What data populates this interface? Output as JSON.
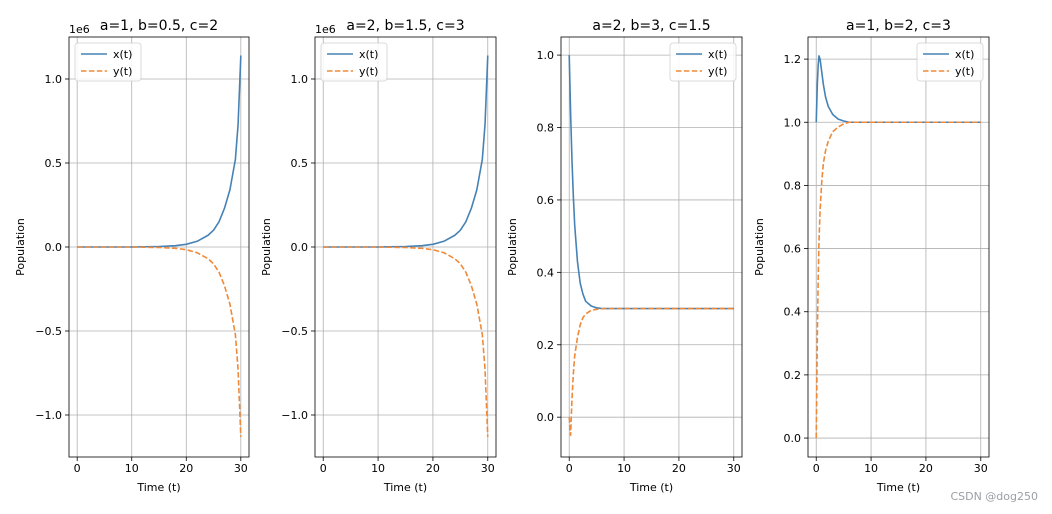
{
  "watermark": "CSDN @dog250",
  "colors": {
    "x_series": "#4682b4",
    "y_series": "#ee8a3a",
    "grid": "#b0b0b0",
    "axis": "#000000"
  },
  "chart_data": [
    {
      "type": "line",
      "title": "a=1, b=0.5, c=2",
      "xlabel": "Time (t)",
      "ylabel": "Population",
      "offset_text": "1e6",
      "xlim": [
        -1.5,
        31.5
      ],
      "ylim": [
        -1.25,
        1.25
      ],
      "xticks": [
        0,
        10,
        20,
        30
      ],
      "xtick_labels": [
        "0",
        "10",
        "20",
        "30"
      ],
      "yticks": [
        -1.0,
        -0.5,
        0.0,
        0.5,
        1.0
      ],
      "ytick_labels": [
        "−1.0",
        "−0.5",
        "0.0",
        "0.5",
        "1.0"
      ],
      "grid": true,
      "legend": "upper left",
      "series": [
        {
          "name": "x(t)",
          "style": "solid",
          "x": [
            0,
            5,
            10,
            15,
            18,
            20,
            22,
            24,
            25,
            26,
            27,
            28,
            29,
            29.5,
            30
          ],
          "y": [
            0.0,
            0.0,
            0.0,
            0.003,
            0.008,
            0.016,
            0.034,
            0.07,
            0.1,
            0.15,
            0.23,
            0.34,
            0.52,
            0.73,
            1.14
          ]
        },
        {
          "name": "y(t)",
          "style": "dashed",
          "x": [
            0,
            5,
            10,
            15,
            18,
            20,
            22,
            24,
            25,
            26,
            27,
            28,
            29,
            29.5,
            30
          ],
          "y": [
            0.0,
            0.0,
            0.0,
            -0.003,
            -0.008,
            -0.016,
            -0.034,
            -0.07,
            -0.1,
            -0.15,
            -0.23,
            -0.34,
            -0.52,
            -0.73,
            -1.13
          ]
        }
      ]
    },
    {
      "type": "line",
      "title": "a=2, b=1.5, c=3",
      "xlabel": "Time (t)",
      "ylabel": "Population",
      "offset_text": "1e6",
      "xlim": [
        -1.5,
        31.5
      ],
      "ylim": [
        -1.25,
        1.25
      ],
      "xticks": [
        0,
        10,
        20,
        30
      ],
      "xtick_labels": [
        "0",
        "10",
        "20",
        "30"
      ],
      "yticks": [
        -1.0,
        -0.5,
        0.0,
        0.5,
        1.0
      ],
      "ytick_labels": [
        "−1.0",
        "−0.5",
        "0.0",
        "0.5",
        "1.0"
      ],
      "grid": true,
      "legend": "upper left",
      "series": [
        {
          "name": "x(t)",
          "style": "solid",
          "x": [
            0,
            5,
            10,
            15,
            18,
            20,
            22,
            24,
            25,
            26,
            27,
            28,
            29,
            29.5,
            30
          ],
          "y": [
            0.0,
            0.0,
            0.0,
            0.003,
            0.008,
            0.016,
            0.034,
            0.07,
            0.1,
            0.15,
            0.23,
            0.34,
            0.52,
            0.73,
            1.14
          ]
        },
        {
          "name": "y(t)",
          "style": "dashed",
          "x": [
            0,
            5,
            10,
            15,
            18,
            20,
            22,
            24,
            25,
            26,
            27,
            28,
            29,
            29.5,
            30
          ],
          "y": [
            0.0,
            0.0,
            0.0,
            -0.003,
            -0.008,
            -0.016,
            -0.034,
            -0.07,
            -0.1,
            -0.15,
            -0.23,
            -0.34,
            -0.52,
            -0.73,
            -1.13
          ]
        }
      ]
    },
    {
      "type": "line",
      "title": "a=2, b=3, c=1.5",
      "xlabel": "Time (t)",
      "ylabel": "Population",
      "offset_text": "",
      "xlim": [
        -1.5,
        31.5
      ],
      "ylim": [
        -0.11,
        1.05
      ],
      "xticks": [
        0,
        10,
        20,
        30
      ],
      "xtick_labels": [
        "0",
        "10",
        "20",
        "30"
      ],
      "yticks": [
        0.0,
        0.2,
        0.4,
        0.6,
        0.8,
        1.0
      ],
      "ytick_labels": [
        "0.0",
        "0.2",
        "0.4",
        "0.6",
        "0.8",
        "1.0"
      ],
      "grid": true,
      "legend": "upper right",
      "series": [
        {
          "name": "x(t)",
          "style": "solid",
          "x": [
            0,
            0.25,
            0.5,
            0.75,
            1,
            1.5,
            2,
            2.5,
            3,
            4,
            5,
            6,
            8,
            10,
            15,
            20,
            25,
            30
          ],
          "y": [
            1.0,
            0.84,
            0.71,
            0.61,
            0.53,
            0.43,
            0.37,
            0.34,
            0.32,
            0.307,
            0.302,
            0.3,
            0.3,
            0.3,
            0.3,
            0.3,
            0.3,
            0.3
          ]
        },
        {
          "name": "y(t)",
          "style": "dashed",
          "x": [
            0,
            0.25,
            0.5,
            0.75,
            1,
            1.5,
            2,
            2.5,
            3,
            4,
            5,
            6,
            8,
            10,
            15,
            20,
            25,
            30
          ],
          "y": [
            0.0,
            -0.05,
            0.05,
            0.12,
            0.17,
            0.22,
            0.255,
            0.275,
            0.285,
            0.295,
            0.298,
            0.3,
            0.3,
            0.3,
            0.3,
            0.3,
            0.3,
            0.3
          ]
        }
      ]
    },
    {
      "type": "line",
      "title": "a=1, b=2, c=3",
      "xlabel": "Time (t)",
      "ylabel": "Population",
      "offset_text": "",
      "xlim": [
        -1.5,
        31.5
      ],
      "ylim": [
        -0.06,
        1.27
      ],
      "xticks": [
        0,
        10,
        20,
        30
      ],
      "xtick_labels": [
        "0",
        "10",
        "20",
        "30"
      ],
      "yticks": [
        0.0,
        0.2,
        0.4,
        0.6,
        0.8,
        1.0,
        1.2
      ],
      "ytick_labels": [
        "0.0",
        "0.2",
        "0.4",
        "0.6",
        "0.8",
        "1.0",
        "1.2"
      ],
      "grid": true,
      "legend": "upper right",
      "series": [
        {
          "name": "x(t)",
          "style": "solid",
          "x": [
            0,
            0.1,
            0.2,
            0.35,
            0.5,
            0.7,
            1,
            1.3,
            1.7,
            2.2,
            3,
            4,
            5,
            6,
            8,
            10,
            15,
            20,
            25,
            30
          ],
          "y": [
            1.0,
            1.06,
            1.12,
            1.18,
            1.21,
            1.2,
            1.16,
            1.12,
            1.08,
            1.05,
            1.025,
            1.01,
            1.004,
            1.0,
            1.0,
            1.0,
            1.0,
            1.0,
            1.0,
            1.0
          ]
        },
        {
          "name": "y(t)",
          "style": "dashed",
          "x": [
            0,
            0.1,
            0.2,
            0.35,
            0.5,
            0.7,
            1,
            1.3,
            1.7,
            2.2,
            3,
            4,
            5,
            6,
            8,
            10,
            15,
            20,
            25,
            30
          ],
          "y": [
            0.0,
            0.16,
            0.32,
            0.5,
            0.62,
            0.72,
            0.81,
            0.87,
            0.91,
            0.94,
            0.97,
            0.985,
            0.995,
            1.0,
            1.0,
            1.0,
            1.0,
            1.0,
            1.0,
            1.0
          ]
        }
      ]
    }
  ]
}
